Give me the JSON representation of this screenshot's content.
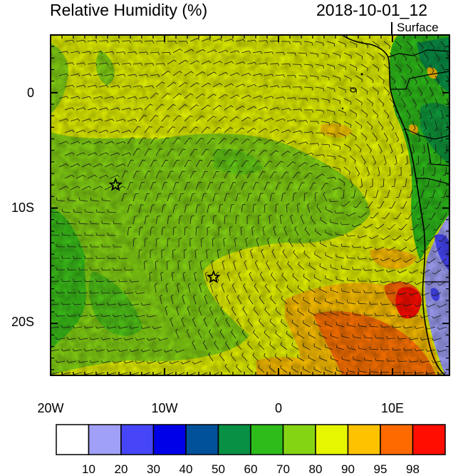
{
  "header": {
    "title": "Relative Humidity (%)",
    "datetime": "2018-10-01_12",
    "level": "Surface"
  },
  "map": {
    "y_axis_labels": [
      "0",
      "10S",
      "20S"
    ],
    "x_axis_labels": [
      "20W",
      "10W",
      "0",
      "10E"
    ],
    "lon_range": [
      -20,
      15
    ],
    "lat_range": [
      -24.5,
      5
    ],
    "markers": [
      {
        "name": "star",
        "lon": -14.3,
        "lat": -8
      },
      {
        "name": "star",
        "lon": -5.7,
        "lat": -16
      }
    ],
    "wind_barbs": "present"
  },
  "colorbar": {
    "labels": [
      "10",
      "20",
      "30",
      "40",
      "50",
      "60",
      "70",
      "80",
      "90",
      "95",
      "98"
    ],
    "colors": [
      "#ffffff",
      "#a0a0f8",
      "#4646f8",
      "#0000e8",
      "#00509a",
      "#089045",
      "#2ebc1a",
      "#85d414",
      "#e6f500",
      "#ffc200",
      "#ff6a00",
      "#ff0d00"
    ]
  }
}
